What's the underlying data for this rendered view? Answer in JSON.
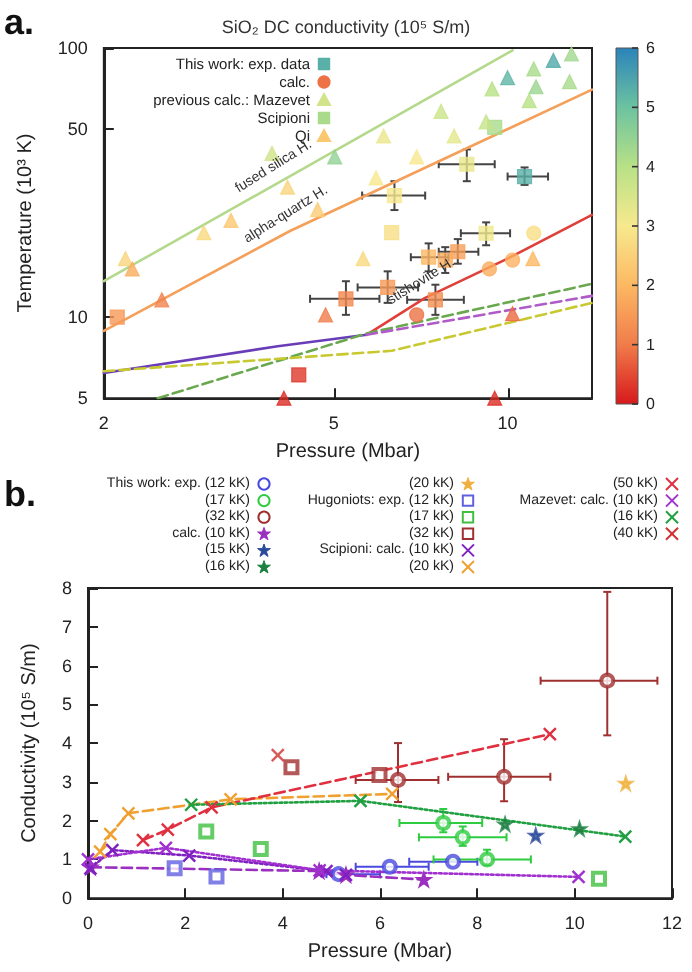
{
  "chart_data": [
    {
      "type": "scatter",
      "title": "SiO₂ DC conductivity (10⁵ S/m)",
      "xlabel": "Pressure (Mbar)",
      "ylabel": "Temperature (10³ K)",
      "annotations": [
        "a."
      ],
      "log": "xy",
      "xlim": [
        2,
        14
      ],
      "xticks": [
        2,
        5,
        10
      ],
      "ylim": [
        5,
        100
      ],
      "yticks": [
        5,
        10,
        50,
        100
      ],
      "clim": [
        0,
        6
      ],
      "cticks": [
        0,
        1,
        2,
        3,
        4,
        5,
        6
      ],
      "legend": "top left",
      "series": [
        {
          "name": "This work: exp. data",
          "type": "scatter",
          "marker": "square",
          "colors": [
            "#59b0a8",
            "#f3884f",
            "#f79a57",
            "#f48e52",
            "#f8a059",
            "#fdb863",
            "#faac5e",
            "#f7e98e",
            "#eae78c",
            "#f1e88d",
            "#df372a"
          ],
          "x": [
            10.7,
            5.25,
            6.2,
            7.5,
            8.2,
            7.3,
            7.8,
            6.37,
            8.5,
            9.18,
            4.35
          ],
          "values": [
            33.3,
            11.7,
            12.9,
            11.6,
            17.5,
            16.7,
            16.3,
            28.3,
            37,
            20.5,
            6.1
          ],
          "cvalues": [
            5.3,
            1.2,
            1.5,
            1.3,
            1.6,
            2.0,
            1.8,
            3.0,
            3.2,
            3.1,
            0.3
          ],
          "errors": [
            [
              31,
              36
            ],
            [
              10.2,
              13.6
            ],
            [
              11.3,
              14.8
            ],
            [
              10.2,
              13.2
            ],
            [
              15.8,
              19.5
            ],
            [
              14.8,
              18.8
            ],
            [
              14.6,
              18.2
            ],
            [
              25,
              32
            ],
            [
              32,
              42
            ],
            [
              18.5,
              22.5
            ],
            null
          ],
          "xerrors": [
            [
              10,
              11.75
            ],
            [
              4.55,
              6.0
            ],
            [
              5.5,
              7.0
            ],
            [
              6.7,
              8.4
            ],
            [
              7.6,
              8.9
            ],
            [
              6.8,
              7.9
            ],
            null,
            [
              5.6,
              7.2
            ],
            [
              7.6,
              9.5
            ],
            [
              8.3,
              10.1
            ],
            null
          ]
        },
        {
          "name": "calc.",
          "type": "scatter",
          "marker": "circle",
          "colors": [
            "#ee7245",
            "#faac5e",
            "#fcb261",
            "#f8df85"
          ],
          "x": [
            6.96,
            9.3,
            10.2,
            11.1
          ],
          "values": [
            10.2,
            15.1,
            16.3,
            20.5
          ],
          "cvalues": [
            0.9,
            1.8,
            1.9,
            2.8
          ]
        },
        {
          "name": "previous calc.: Mazevet",
          "type": "scatter",
          "marker": "triangle",
          "colors": [
            "#d1e489",
            "#92d293",
            "#5fb6a5",
            "#52a9aa",
            "#9ad590",
            "#f9d57d",
            "#f9da81",
            "#fdb863",
            "#f07c4a",
            "#eb6841",
            "#dc2d25",
            "#dc2d25",
            "#f9d57d",
            "#f9da81"
          ],
          "x": [
            3.91,
            5.02,
            10.0,
            12.0,
            11.2,
            2.18,
            5.62,
            11.06,
            4.84,
            10.2,
            4.1,
            9.5,
            4.16,
            2.98
          ],
          "values": [
            40.6,
            39.4,
            77.6,
            90,
            71.8,
            16.5,
            16.5,
            16.5,
            10.2,
            10.3,
            5,
            5,
            30.4,
            20.6
          ],
          "cvalues": [
            3.6,
            4.5,
            5.2,
            5.4,
            4.4,
            2.6,
            2.7,
            2.0,
            1.0,
            0.8,
            0.2,
            0.2,
            2.6,
            2.7
          ]
        },
        {
          "name": "Scipioni",
          "type": "scatter",
          "marker": "square",
          "colors": [
            "#a9db8b",
            "#f8df85",
            "#f79a57"
          ],
          "x": [
            9.5,
            6.3,
            2.11
          ],
          "values": [
            50.7,
            20.6,
            10
          ],
          "cvalues": [
            4.2,
            2.8,
            1.5
          ]
        },
        {
          "name": "Qi",
          "type": "scatter",
          "marker": "triangle",
          "colors": [
            "#fbc770",
            "#fbcc74",
            "#f7e98e",
            "#eae78c",
            "#f7e98e",
            "#cbe388",
            "#e4e78c",
            "#c5e388",
            "#b8e186",
            "#a9db8b",
            "#a1d88e",
            "#a9db8b",
            "#b8e186",
            "#faac5e",
            "#f1824d"
          ],
          "x": [
            3.32,
            4.69,
            5.92,
            6.1,
            6.96,
            7.67,
            8.08,
            9.18,
            9.4,
            11.1,
            12.9,
            12.8,
            10.9,
            2.24,
            2.52
          ],
          "values": [
            22.9,
            25.1,
            32.9,
            47.1,
            39.4,
            58.2,
            47.1,
            53.2,
            70.5,
            83.6,
            95,
            75,
            63.7,
            15.1,
            11.6
          ],
          "cvalues": [
            2.3,
            2.4,
            3.0,
            3.2,
            3.0,
            3.7,
            3.3,
            3.8,
            4.0,
            4.2,
            4.3,
            4.2,
            4.0,
            1.8,
            1.1
          ]
        },
        {
          "name": "fused silica H.",
          "type": "line",
          "color": "#b5d98c",
          "x": [
            2,
            4,
            10.2
          ],
          "values": [
            13.6,
            31.5,
            98
          ]
        },
        {
          "name": "alpha-quartz H.",
          "type": "line",
          "color": "#f4a05a",
          "x": [
            2,
            4.2,
            14
          ],
          "values": [
            8.9,
            20.9,
            70
          ]
        },
        {
          "name": "stishovite H.",
          "type": "line",
          "color": "#e0403a",
          "x": [
            5.7,
            7.2,
            10,
            14
          ],
          "values": [
            8.6,
            11.8,
            16.5,
            24
          ]
        },
        {
          "type": "line",
          "color": "#6a3db8",
          "x": [
            2,
            4,
            5.7
          ],
          "values": [
            6.2,
            7.8,
            8.6
          ]
        },
        {
          "type": "line",
          "color": "#6aa84f",
          "line_style": "dashed",
          "x": [
            2.48,
            5.7,
            14
          ],
          "values": [
            5,
            8.7,
            13.3
          ]
        },
        {
          "type": "line",
          "color": "#b05cc8",
          "line_style": "dashed",
          "x": [
            5.7,
            14
          ],
          "values": [
            8.6,
            12
          ]
        },
        {
          "type": "line",
          "color": "#c8c830",
          "line_style": "dashed",
          "x": [
            2,
            6.3,
            14
          ],
          "values": [
            6.3,
            7.5,
            11.3
          ]
        }
      ]
    },
    {
      "type": "scatter",
      "xlabel": "Pressure (Mbar)",
      "ylabel": "Conductivity (10⁵ S/m)",
      "annotations": [
        "b."
      ],
      "xlim": [
        0,
        12
      ],
      "xticks": [
        0,
        2,
        4,
        6,
        8,
        10,
        12
      ],
      "ylim": [
        0,
        8
      ],
      "yticks": [
        0,
        1,
        2,
        3,
        4,
        5,
        6,
        7,
        8
      ],
      "legend": "top",
      "series": [
        {
          "name": "This work: exp. (12 kK)",
          "type": "scatter",
          "marker": "circle",
          "color": "#4a4adf",
          "x": [
            5.15,
            6.2,
            7.5
          ],
          "values": [
            0.62,
            0.81,
            0.94
          ],
          "xerrors": [
            [
              4.9,
              6.0
            ],
            [
              5.5,
              7.0
            ],
            [
              6.6,
              8.0
            ]
          ]
        },
        {
          "name": "(17 kK)",
          "type": "scatter",
          "marker": "circle",
          "color": "#2ecc40",
          "x": [
            7.3,
            7.7,
            8.2
          ],
          "values": [
            1.94,
            1.57,
            1.0
          ],
          "errors": [
            [
              1.7,
              2.3
            ],
            [
              1.35,
              1.85
            ],
            [
              0.85,
              1.25
            ]
          ],
          "xerrors": [
            [
              6.4,
              8.1
            ],
            [
              6.8,
              8.6
            ],
            [
              7.1,
              9.1
            ]
          ]
        },
        {
          "name": "(32 kK)",
          "type": "scatter",
          "marker": "circle",
          "color": "#a03030",
          "x": [
            6.37,
            8.55,
            10.67
          ],
          "values": [
            3.05,
            3.13,
            5.61
          ],
          "errors": [
            [
              2.48,
              4.0
            ],
            [
              2.5,
              4.1
            ],
            [
              4.2,
              7.9
            ]
          ],
          "xerrors": [
            [
              5.5,
              7.2
            ],
            [
              7.4,
              9.5
            ],
            [
              9.3,
              11.7
            ]
          ]
        },
        {
          "name": "calc. (10 kK)",
          "type": "line",
          "marker": "star",
          "line_style": "dashed",
          "color": "#9b30c0",
          "x": [
            0.05,
            4.75,
            5.3,
            6.9
          ],
          "values": [
            0.8,
            0.7,
            0.6,
            0.48
          ]
        },
        {
          "name": "(15 kK)",
          "type": "scatter",
          "marker": "star",
          "color": "#2a4a9a",
          "x": [
            9.2
          ],
          "values": [
            1.62
          ]
        },
        {
          "name": "(16 kK)",
          "type": "scatter",
          "marker": "star",
          "color": "#1a8040",
          "x": [
            8.57,
            10.1
          ],
          "values": [
            1.91,
            1.79
          ]
        },
        {
          "name": "(20 kK)",
          "type": "scatter",
          "marker": "star",
          "color": "#f0b040",
          "x": [
            11.05
          ],
          "values": [
            2.96
          ]
        },
        {
          "name": "Hugoniots: exp. (12 kK)",
          "type": "scatter",
          "marker": "square",
          "color": "#6060e0",
          "x": [
            1.78,
            2.64
          ],
          "values": [
            0.77,
            0.56
          ]
        },
        {
          "name": "(17 kK)",
          "type": "scatter",
          "marker": "square",
          "color": "#40c040",
          "x": [
            2.43,
            3.55,
            10.5
          ],
          "values": [
            1.72,
            1.27,
            0.5
          ]
        },
        {
          "name": "(32 kK)",
          "type": "scatter",
          "marker": "square",
          "color": "#a03030",
          "x": [
            4.18,
            5.99
          ],
          "values": [
            3.38,
            3.18
          ]
        },
        {
          "name": "Scipioni: calc. (10 kK)",
          "type": "line",
          "marker": "cross",
          "line_style": "dotted",
          "color": "#8020c0",
          "x": [
            0.05,
            0.5,
            2.08,
            4.9,
            5.3
          ],
          "values": [
            0.77,
            1.24,
            1.1,
            0.7,
            0.6
          ]
        },
        {
          "name": "(20 kK)",
          "type": "line",
          "marker": "cross",
          "line_style": "dashed",
          "color": "#f0a030",
          "x": [
            0.25,
            0.46,
            0.83,
            2.93,
            6.25
          ],
          "values": [
            1.2,
            1.65,
            2.19,
            2.55,
            2.69
          ]
        },
        {
          "name": "(50 kK)",
          "type": "line",
          "marker": "cross",
          "line_style": "dashed",
          "color": "#e03040",
          "x": [
            1.13,
            1.64,
            2.54,
            9.49
          ],
          "values": [
            1.5,
            1.77,
            2.34,
            4.23
          ]
        },
        {
          "name": "Mazevet: calc. (10 kK)",
          "type": "line",
          "marker": "cross",
          "line_style": "dotted",
          "color": "#a030d0",
          "x": [
            0,
            1.6,
            4.76,
            10.08
          ],
          "values": [
            1.0,
            1.3,
            0.72,
            0.55
          ]
        },
        {
          "name": "(16 kK)",
          "type": "line",
          "marker": "cross",
          "line_style": "dotted",
          "color": "#20a040",
          "x": [
            2.12,
            5.6,
            11.04
          ],
          "values": [
            2.41,
            2.51,
            1.59
          ]
        },
        {
          "name": "(40 kK)",
          "type": "scatter",
          "marker": "cross",
          "color": "#d03030",
          "x": [
            3.9
          ],
          "values": [
            3.69
          ]
        }
      ]
    }
  ]
}
